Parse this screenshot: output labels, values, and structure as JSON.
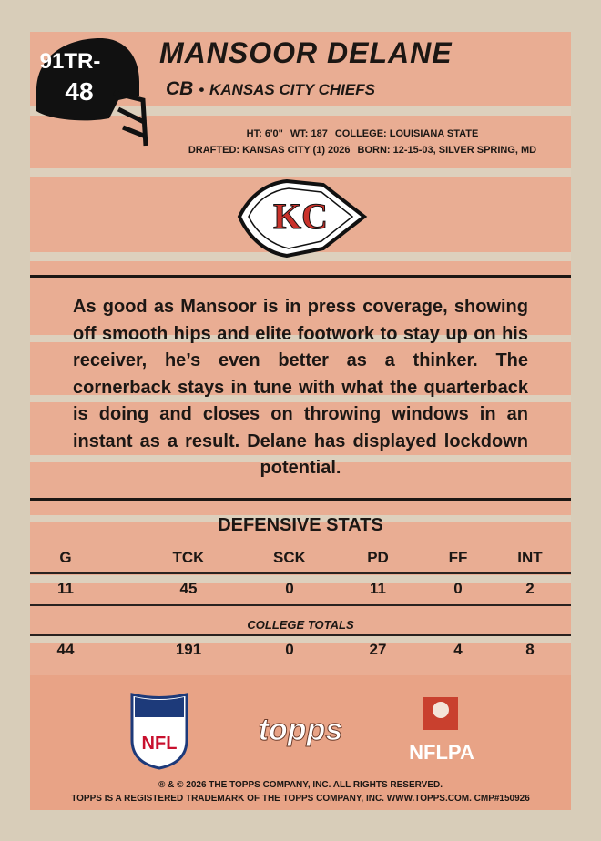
{
  "card_number": [
    "91TR-",
    "48"
  ],
  "player": {
    "name": "MANSOOR DELANE",
    "position": "CB",
    "separator": "•",
    "team": "KANSAS CITY CHIEFS"
  },
  "bio": {
    "line1": [
      "HT: 6'0\"",
      "WT: 187",
      "COLLEGE: LOUISIANA STATE"
    ],
    "line2": [
      "DRAFTED: KANSAS CITY (1) 2026",
      "BORN: 12-15-03, SILVER SPRING, MD"
    ]
  },
  "team_logo": "KC",
  "description": "As good as Mansoor is in press coverage, showing off smooth hips and elite footwork to stay up on his receiver, he’s even better as a thinker. The cornerback stays in tune with what the quarterback is doing and closes on throwing windows in an instant as a result. Delane has displayed lockdown potential.",
  "stats": {
    "title": "DEFENSIVE STATS",
    "headers": [
      "G",
      "TCK",
      "SCK",
      "PD",
      "FF",
      "INT"
    ],
    "season": [
      11,
      45,
      0,
      11,
      0,
      2
    ],
    "college_label": "COLLEGE TOTALS",
    "college": [
      44,
      191,
      0,
      27,
      4,
      8
    ]
  },
  "logos": {
    "nfl": "NFL",
    "topps": "topps",
    "nflpa": "NFLPA"
  },
  "footer": [
    "® & © 2026 THE TOPPS COMPANY, INC. ALL RIGHTS RESERVED.",
    "TOPPS IS A REGISTERED TRADEMARK OF THE TOPPS COMPANY, INC. WWW.TOPPS.COM. CMP#150926"
  ]
}
